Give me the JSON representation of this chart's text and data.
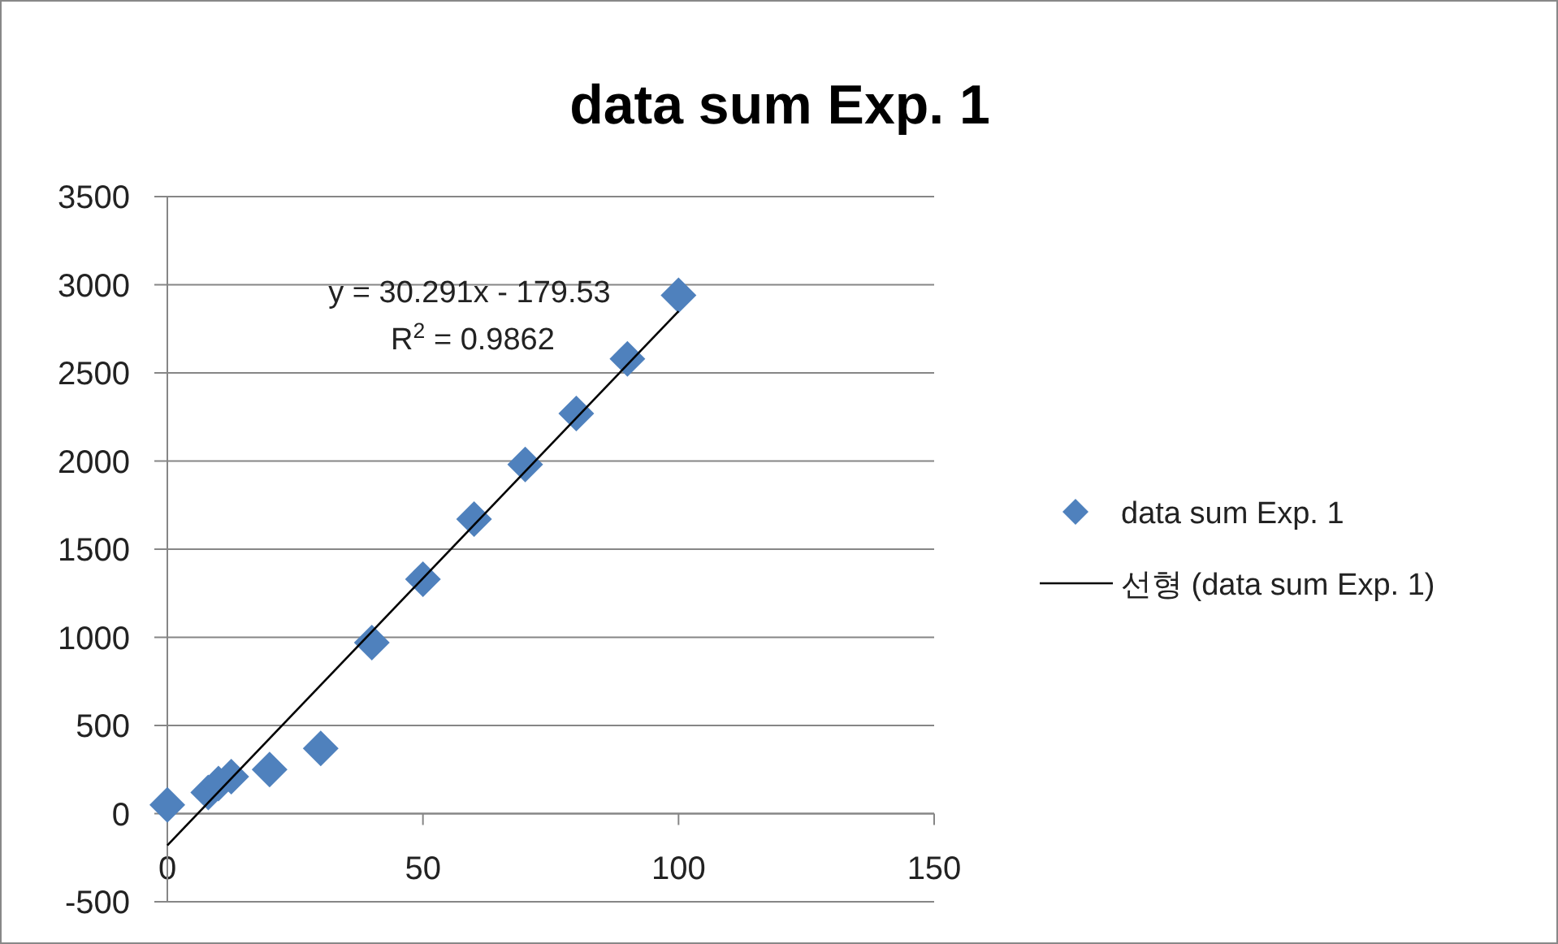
{
  "chart_data": {
    "type": "scatter",
    "title": "data sum Exp. 1",
    "xlim": [
      0,
      150
    ],
    "ylim": [
      -500,
      3500
    ],
    "xticks": [
      0,
      50,
      100,
      150
    ],
    "yticks": [
      -500,
      0,
      500,
      1000,
      1500,
      2000,
      2500,
      3000,
      3500
    ],
    "grid": "y",
    "legend": "right",
    "annotations": [
      "y = 30.291x - 179.53",
      "R$^{2}$ = 0.9862"
    ],
    "series": [
      {
        "name": "data sum Exp. 1",
        "marker": "diamond",
        "color": "#4f81bd",
        "x": [
          0,
          8,
          10,
          12.5,
          20,
          30,
          40,
          50,
          60,
          70,
          80,
          90,
          100
        ],
        "values": [
          50,
          120,
          170,
          210,
          250,
          370,
          970,
          1330,
          1670,
          1980,
          2270,
          2580,
          2940
        ]
      },
      {
        "name": "선형 (data sum Exp. 1)",
        "type": "line",
        "marker": "none",
        "color": "#000000",
        "x": [
          0,
          100
        ],
        "values": [
          -180,
          2850
        ]
      }
    ]
  }
}
